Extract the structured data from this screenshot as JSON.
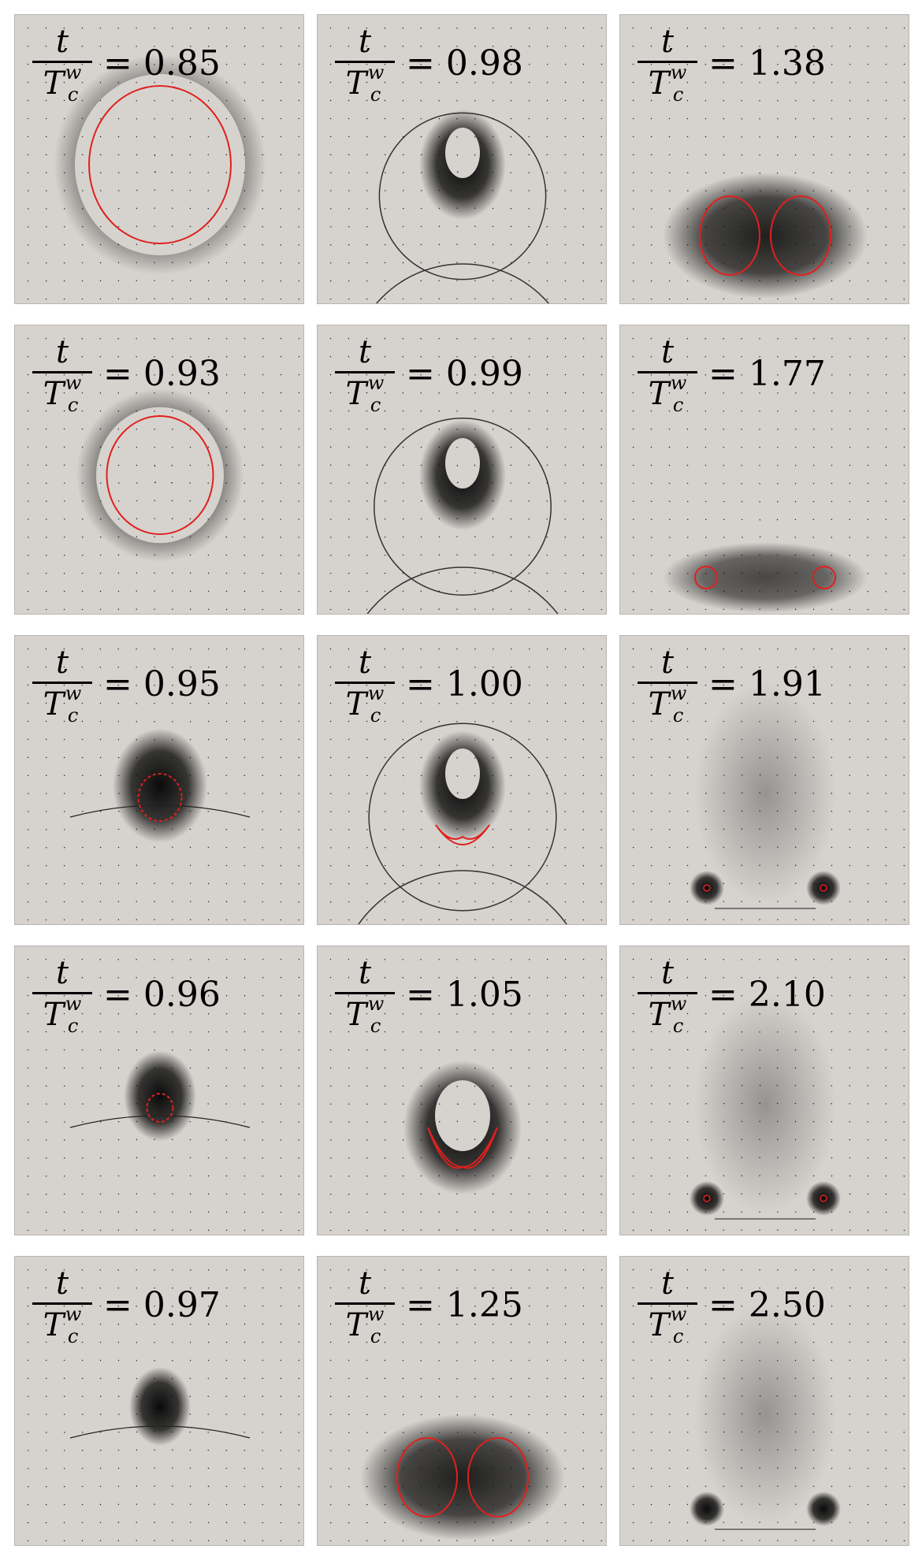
{
  "label": {
    "numerator": "t",
    "denominator_base": "T",
    "denominator_superscript": "w",
    "denominator_subscript": "c",
    "equals": "="
  },
  "colors": {
    "background": "#d6d3ce",
    "vortex_core": "#000000",
    "interface": "#e0201e",
    "arrows": "#111111"
  },
  "panels": [
    {
      "id": "p1",
      "time": "0.85",
      "stage": "bubble",
      "size": 1.0
    },
    {
      "id": "p2",
      "time": "0.98",
      "stage": "jet-wave",
      "size": 0.6
    },
    {
      "id": "p3",
      "time": "1.38",
      "stage": "lobes-large",
      "size": 1.0
    },
    {
      "id": "p4",
      "time": "0.93",
      "stage": "bubble",
      "size": 0.75
    },
    {
      "id": "p5",
      "time": "0.99",
      "stage": "jet-wave",
      "size": 0.7
    },
    {
      "id": "p6",
      "time": "1.77",
      "stage": "lobes-small",
      "size": 0.6
    },
    {
      "id": "p7",
      "time": "0.95",
      "stage": "collapse",
      "size": 0.5
    },
    {
      "id": "p8",
      "time": "1.00",
      "stage": "jet-wave",
      "size": 0.8
    },
    {
      "id": "p9",
      "time": "1.91",
      "stage": "rings",
      "size": 0.4
    },
    {
      "id": "p10",
      "time": "0.96",
      "stage": "collapse",
      "size": 0.3
    },
    {
      "id": "p11",
      "time": "1.05",
      "stage": "jet-u",
      "size": 0.9
    },
    {
      "id": "p12",
      "time": "2.10",
      "stage": "rings",
      "size": 0.3
    },
    {
      "id": "p13",
      "time": "0.97",
      "stage": "collapse",
      "size": 0.2
    },
    {
      "id": "p14",
      "time": "1.25",
      "stage": "lobes-large",
      "size": 0.9
    },
    {
      "id": "p15",
      "time": "2.50",
      "stage": "rings",
      "size": 0.2
    }
  ]
}
